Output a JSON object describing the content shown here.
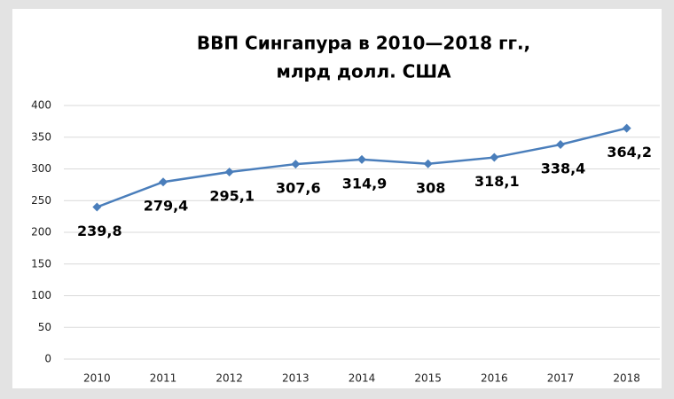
{
  "chart_data": {
    "type": "line",
    "title": [
      "ВВП Сингапура в 2010—2018 гг.,",
      "млрд долл. США"
    ],
    "categories": [
      "2010",
      "2011",
      "2012",
      "2013",
      "2014",
      "2015",
      "2016",
      "2017",
      "2018"
    ],
    "series": [
      {
        "color": "#4a7ebb",
        "values": [
          239.8,
          279.4,
          295.1,
          307.6,
          314.9,
          308,
          318.1,
          338.4,
          364.2
        ],
        "value_labels": [
          "239,8",
          "279,4",
          "295,1",
          "307,6",
          "314,9",
          "308",
          "318,1",
          "338,4",
          "364,2"
        ]
      }
    ],
    "ylim": [
      0,
      400
    ],
    "yticks": [
      0,
      50,
      100,
      150,
      200,
      250,
      300,
      350,
      400
    ],
    "grid": true
  }
}
